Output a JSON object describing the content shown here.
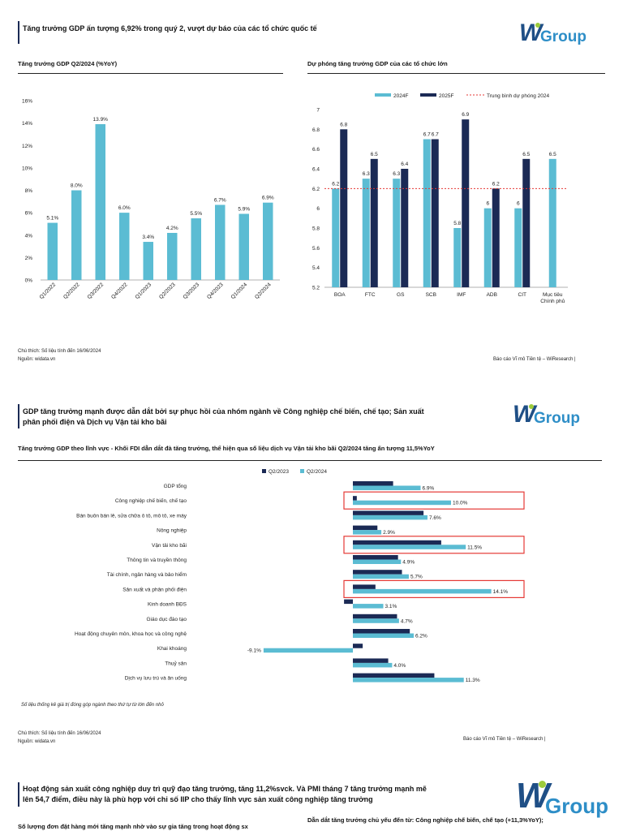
{
  "brand": {
    "logo_w": "W",
    "logo_group": "Group",
    "logo_color": "#1f4f86",
    "logo_accent": "#2e8ec7",
    "logo_dot": "#9ccb3b"
  },
  "colors": {
    "light": "#5bbcd3",
    "dark": "#1b2a55",
    "red": "#e53935"
  },
  "section1": {
    "title": "Tăng trưởng GDP ấn tượng 6,92% trong quý 2, vượt dự báo của các tổ chức quốc tế",
    "left_chart_title": "Tăng trưởng GDP Q2/2024 (%YoY)",
    "right_chart_title": "Dự phóng tăng trưởng GDP của các tổ chức lớn",
    "note": "Chú thích: Số liệu tính đến 16/06/2024",
    "source": "Nguồn: widata.vn",
    "footer": "Báo cáo Vĩ mô Tiền tệ – WiResearch |"
  },
  "section2": {
    "title_line1": "GDP tăng trưởng mạnh được dẫn dắt bởi sự phục hồi của nhóm ngành về Công nghiệp chế biến, chế tạo; Sản xuất",
    "title_line2": "phân phối điện và Dịch vụ Vận tải kho bãi",
    "chart_title": "Tăng trưởng GDP theo lĩnh vực - Khối FDI dẫn dắt đà tăng trưởng, thể hiện qua số liệu dịch vụ Vận tải kho bãi Q2/2024 tăng ấn tượng 11,5%YoY",
    "chart_note": "Số liệu thống kê giá trị đóng góp ngành theo thứ tự từ lớn đến nhỏ",
    "note": "Chú thích: Số liệu tính đến 16/06/2024",
    "source": "Nguồn: widata.vn",
    "footer": "Báo cáo Vĩ mô Tiền tệ – WiResearch |"
  },
  "section3": {
    "title_line1": "Hoạt động sản xuất công nghiệp duy trì quỹ đạo tăng trưởng, tăng 11,2%svck. Và PMI tháng 7 tăng trưởng mạnh mẽ",
    "title_line2": "lên 54,7 điểm, điều này là phù hợp với chỉ số IIP cho thấy lĩnh vực sản xuất công nghiệp tăng trưởng",
    "left_sub": "Số lượng đơn đặt hàng mới tăng mạnh nhờ vào sự gia tăng trong hoạt động sx",
    "right_sub": "Dẫn dắt tăng trưởng chủ yếu đến từ: Công nghiệp chế biến, chế tạo (+11,3%YoY);"
  },
  "chart_data": [
    {
      "type": "bar",
      "title": "Tăng trưởng GDP Q2/2024 (%YoY)",
      "categories": [
        "Q1/2022",
        "Q2/2022",
        "Q3/2022",
        "Q4/2022",
        "Q1/2023",
        "Q2/2023",
        "Q3/2023",
        "Q4/2023",
        "Q1/2024",
        "Q2/2024"
      ],
      "values": [
        5.1,
        8.0,
        13.9,
        6.0,
        3.4,
        4.2,
        5.5,
        6.7,
        5.9,
        6.9
      ],
      "labels": [
        "5.1%",
        "8.0%",
        "13.9%",
        "6.0%",
        "3.4%",
        "4.2%",
        "5.5%",
        "6.7%",
        "5.9%",
        "6.9%"
      ],
      "yticks": [
        "0%",
        "2%",
        "4%",
        "6%",
        "8%",
        "10%",
        "12%",
        "14%",
        "16%"
      ],
      "ylim": [
        0,
        16
      ]
    },
    {
      "type": "bar",
      "title": "Dự phóng tăng trưởng GDP của các tổ chức lớn",
      "categories": [
        "BOA",
        "FTC",
        "GS",
        "SCB",
        "IMF",
        "ADB",
        "CIT",
        "Mục tiêu Chính phủ"
      ],
      "series": [
        {
          "name": "2024F",
          "values": [
            6.2,
            6.3,
            6.3,
            6.7,
            5.8,
            6.0,
            6.0,
            6.5
          ]
        },
        {
          "name": "2025F",
          "values": [
            6.8,
            6.5,
            6.4,
            6.7,
            6.9,
            6.2,
            6.5,
            null
          ]
        }
      ],
      "reference_line": {
        "name": "Trung bình dự phóng 2024",
        "value": 6.2
      },
      "label_2024": [
        "6.2",
        "6.3",
        "6.3",
        "6.7",
        "5.8",
        "6",
        "6",
        "6.5"
      ],
      "label_2025": [
        "6.8",
        "6.5",
        "6.4",
        "6.7",
        "6.9",
        "6.2",
        "6.5",
        ""
      ],
      "yticks": [
        "5.2",
        "5.4",
        "5.6",
        "5.8",
        "6",
        "6.2",
        "6.4",
        "6.6",
        "6.8",
        "7"
      ],
      "ylim": [
        5.2,
        7.0
      ]
    },
    {
      "type": "bar",
      "orientation": "horizontal",
      "title": "Tăng trưởng GDP theo lĩnh vực",
      "categories": [
        "GDP tổng",
        "Công nghiệp chế biến, chế tạo",
        "Bán buôn bán lẻ, sửa chữa ô tô, mô tô, xe máy",
        "Nông nghiệp",
        "Vận tải kho bãi",
        "Thông tin và truyền thông",
        "Tài chính, ngân hàng và bảo hiểm",
        "Sản xuất và phân phối điện",
        "Kinh doanh BĐS",
        "Giáo dục đào tạo",
        "Hoạt động chuyên môn, khoa học và công nghệ",
        "Khai khoáng",
        "Thuỷ sản",
        "Dịch vụ lưu trú và ăn uống"
      ],
      "series": [
        {
          "name": "Q2/2023",
          "values": [
            4.1,
            0.4,
            7.2,
            2.5,
            9.0,
            4.6,
            5.0,
            2.3,
            -0.9,
            4.5,
            5.8,
            1.0,
            3.6,
            8.3
          ]
        },
        {
          "name": "Q2/2024",
          "values": [
            6.9,
            10.0,
            7.6,
            2.9,
            11.5,
            4.9,
            5.7,
            14.1,
            3.1,
            4.7,
            6.2,
            -9.1,
            4.0,
            11.3
          ]
        }
      ],
      "labels_2024": [
        "6.9%",
        "10.0%",
        "7.6%",
        "2.9%",
        "11.5%",
        "4.9%",
        "5.7%",
        "14.1%",
        "3.1%",
        "4.7%",
        "6.2%",
        "-9.1%",
        "4.0%",
        "11.3%"
      ],
      "highlighted": [
        "Công nghiệp chế biến, chế tạo",
        "Vận tải kho bãi",
        "Sản xuất và phân phối điện"
      ]
    }
  ]
}
